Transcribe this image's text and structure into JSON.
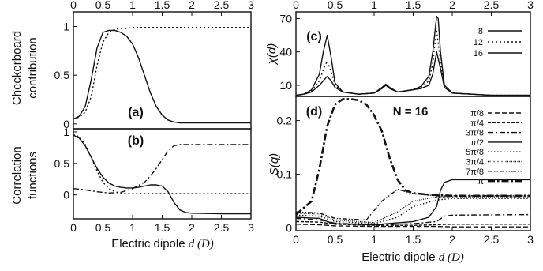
{
  "chart_data": [
    {
      "type": "line",
      "panel": "(a)",
      "ylabel": "Checkerboard contribution",
      "ylabel_lines": [
        "Checkerboard",
        "contribution"
      ],
      "xlim": [
        0,
        3
      ],
      "ylim": [
        -0.05,
        1.15
      ],
      "yticks": [
        "0",
        "0.5",
        "1"
      ],
      "xticks_top": [
        "0",
        "0.5",
        "1",
        "1.5",
        "2",
        "2.5",
        "3"
      ],
      "series": [
        {
          "style": "solid",
          "x": [
            0,
            0.1,
            0.2,
            0.3,
            0.4,
            0.5,
            0.6,
            0.7,
            0.8,
            0.9,
            1.0,
            1.1,
            1.2,
            1.3,
            1.4,
            1.5,
            1.6,
            1.7,
            1.8,
            1.9,
            2.0,
            2.2,
            2.5,
            3.0
          ],
          "y": [
            0.05,
            0.08,
            0.18,
            0.45,
            0.78,
            0.94,
            0.96,
            0.96,
            0.94,
            0.9,
            0.82,
            0.68,
            0.5,
            0.32,
            0.18,
            0.09,
            0.04,
            0.02,
            0.01,
            0.01,
            0.01,
            0.01,
            0.01,
            0.01
          ]
        },
        {
          "style": "dotted",
          "x": [
            0,
            0.1,
            0.2,
            0.3,
            0.4,
            0.5,
            0.6,
            0.7,
            0.8,
            0.9,
            1.0,
            1.2,
            1.5,
            2.0,
            2.5,
            3.0
          ],
          "y": [
            0.05,
            0.07,
            0.12,
            0.28,
            0.6,
            0.84,
            0.94,
            0.97,
            0.98,
            0.98,
            0.99,
            0.99,
            0.99,
            0.99,
            0.99,
            0.99
          ]
        }
      ]
    },
    {
      "type": "line",
      "panel": "(b)",
      "ylabel": "Correlation functions",
      "ylabel_lines": [
        "Correlation",
        "functions"
      ],
      "xlabel_prefix": "Electric dipole ",
      "xlabel_italic": "d (D)",
      "xlim": [
        0,
        3
      ],
      "ylim": [
        -0.38,
        1.05
      ],
      "yticks": [
        "0",
        "0.5",
        "1"
      ],
      "xticks": [
        "0",
        "0.5",
        "1",
        "1.5",
        "2",
        "2.5",
        "3"
      ],
      "series": [
        {
          "style": "solid",
          "x": [
            0,
            0.1,
            0.2,
            0.3,
            0.4,
            0.5,
            0.6,
            0.7,
            0.8,
            0.9,
            1.0,
            1.1,
            1.2,
            1.3,
            1.4,
            1.5,
            1.6,
            1.7,
            1.8,
            1.9,
            2.0,
            2.5,
            3.0
          ],
          "y": [
            0.95,
            0.9,
            0.78,
            0.6,
            0.42,
            0.28,
            0.19,
            0.14,
            0.12,
            0.11,
            0.11,
            0.12,
            0.14,
            0.16,
            0.16,
            0.14,
            0.05,
            -0.12,
            -0.24,
            -0.28,
            -0.29,
            -0.3,
            -0.3
          ]
        },
        {
          "style": "dotted",
          "x": [
            0,
            0.1,
            0.2,
            0.3,
            0.4,
            0.5,
            0.6,
            0.7,
            0.8,
            0.9,
            1.0,
            1.2,
            1.5,
            2.0,
            2.5,
            3.0
          ],
          "y": [
            0.97,
            0.92,
            0.8,
            0.6,
            0.38,
            0.2,
            0.1,
            0.05,
            0.03,
            0.02,
            0.02,
            0.02,
            0.02,
            0.02,
            0.02,
            0.02
          ]
        },
        {
          "style": "dashdot",
          "x": [
            0,
            0.2,
            0.4,
            0.6,
            0.8,
            1.0,
            1.2,
            1.3,
            1.4,
            1.5,
            1.6,
            1.7,
            1.8,
            1.9,
            2.0,
            2.5,
            3.0
          ],
          "y": [
            0.1,
            0.08,
            0.05,
            0.03,
            0.04,
            0.1,
            0.2,
            0.3,
            0.42,
            0.56,
            0.7,
            0.78,
            0.8,
            0.8,
            0.8,
            0.8,
            0.8
          ]
        }
      ]
    },
    {
      "type": "line",
      "panel": "(c)",
      "ylabel": "χ(d)",
      "xlim": [
        0,
        3
      ],
      "ylim": [
        0,
        76
      ],
      "yticks": [
        "10",
        "40",
        "70"
      ],
      "xticks_top": [
        "0",
        "0.5",
        "1",
        "1.5",
        "2",
        "2.5",
        "3"
      ],
      "legend_position": "top-right",
      "series": [
        {
          "name": "8",
          "style": "solid",
          "x": [
            0,
            0.1,
            0.2,
            0.3,
            0.35,
            0.4,
            0.45,
            0.5,
            0.6,
            0.8,
            1.0,
            1.1,
            1.15,
            1.2,
            1.3,
            1.4,
            1.5,
            1.6,
            1.7,
            1.75,
            1.8,
            1.85,
            1.9,
            2.0,
            2.5,
            3.0
          ],
          "y": [
            1,
            2,
            4,
            10,
            14,
            18,
            14,
            8,
            4,
            2,
            3,
            8,
            11,
            8,
            4,
            5,
            6,
            7,
            10,
            20,
            40,
            25,
            8,
            3,
            1,
            1
          ]
        },
        {
          "name": "12",
          "style": "dotted",
          "x": [
            0,
            0.1,
            0.2,
            0.3,
            0.35,
            0.4,
            0.45,
            0.5,
            0.6,
            0.8,
            1.0,
            1.1,
            1.15,
            1.2,
            1.3,
            1.4,
            1.5,
            1.6,
            1.7,
            1.75,
            1.8,
            1.85,
            1.9,
            2.0,
            2.5,
            3.0
          ],
          "y": [
            1,
            2,
            5,
            14,
            24,
            32,
            22,
            10,
            4,
            2,
            3,
            7,
            10,
            7,
            4,
            5,
            6,
            8,
            14,
            30,
            60,
            30,
            9,
            3,
            1,
            1
          ]
        },
        {
          "name": "16",
          "style": "solid",
          "x": [
            0,
            0.1,
            0.2,
            0.3,
            0.35,
            0.4,
            0.45,
            0.5,
            0.6,
            0.8,
            1.0,
            1.1,
            1.15,
            1.2,
            1.3,
            1.4,
            1.5,
            1.6,
            1.7,
            1.75,
            1.8,
            1.82,
            1.85,
            1.9,
            2.0,
            2.5,
            3.0
          ],
          "y": [
            1,
            2,
            6,
            20,
            40,
            55,
            35,
            12,
            4,
            2,
            3,
            7,
            10,
            7,
            4,
            5,
            6,
            9,
            18,
            40,
            72,
            70,
            40,
            10,
            3,
            1,
            1
          ]
        }
      ]
    },
    {
      "type": "line",
      "panel": "(d)",
      "annotation": "N = 16",
      "ylabel": "S(q)",
      "xlabel_prefix": "Electric dipole ",
      "xlabel_italic": "d (D)",
      "xlim": [
        0,
        3
      ],
      "ylim": [
        -0.005,
        0.245
      ],
      "yticks": [
        "0",
        "0.1",
        "0.2"
      ],
      "xticks": [
        "0",
        "0.5",
        "1",
        "1.5",
        "2",
        "2.5",
        "3"
      ],
      "legend_position": "right",
      "series": [
        {
          "name": "π/8",
          "style": "dash",
          "x": [
            0,
            0.3,
            0.5,
            1.0,
            1.5,
            1.8,
            2.0,
            3.0
          ],
          "y": [
            0.007,
            0.006,
            0.004,
            0.003,
            0.003,
            0.003,
            0.002,
            0.002
          ]
        },
        {
          "name": "π/4",
          "style": "dash2",
          "x": [
            0,
            0.3,
            0.5,
            1.0,
            1.5,
            1.8,
            2.0,
            3.0
          ],
          "y": [
            0.012,
            0.011,
            0.007,
            0.005,
            0.005,
            0.006,
            0.007,
            0.007
          ]
        },
        {
          "name": "3π/8",
          "style": "dashdot",
          "x": [
            0,
            0.3,
            0.5,
            1.0,
            1.5,
            1.8,
            1.9,
            2.0,
            3.0
          ],
          "y": [
            0.018,
            0.015,
            0.009,
            0.006,
            0.008,
            0.012,
            0.022,
            0.024,
            0.025
          ]
        },
        {
          "name": "π/2",
          "style": "solid",
          "x": [
            0,
            0.3,
            0.4,
            0.5,
            1.0,
            1.5,
            1.7,
            1.8,
            1.85,
            1.9,
            2.0,
            3.0
          ],
          "y": [
            0.02,
            0.018,
            0.012,
            0.008,
            0.006,
            0.012,
            0.02,
            0.04,
            0.07,
            0.085,
            0.09,
            0.09
          ]
        },
        {
          "name": "5π/8",
          "style": "dot",
          "x": [
            0,
            0.3,
            0.5,
            1.0,
            1.3,
            1.5,
            1.8,
            2.0,
            3.0
          ],
          "y": [
            0.024,
            0.022,
            0.012,
            0.008,
            0.02,
            0.04,
            0.052,
            0.055,
            0.055
          ]
        },
        {
          "name": "3π/4",
          "style": "dot2",
          "x": [
            0,
            0.3,
            0.5,
            1.0,
            1.3,
            1.5,
            1.8,
            2.0,
            3.0
          ],
          "y": [
            0.028,
            0.026,
            0.015,
            0.01,
            0.03,
            0.05,
            0.058,
            0.058,
            0.058
          ]
        },
        {
          "name": "7π/8",
          "style": "dashdotdot",
          "x": [
            0,
            0.3,
            0.5,
            0.9,
            1.1,
            1.3,
            1.5,
            1.8,
            2.0,
            3.0
          ],
          "y": [
            0.03,
            0.028,
            0.018,
            0.015,
            0.05,
            0.072,
            0.064,
            0.06,
            0.06,
            0.06
          ]
        },
        {
          "name": "π",
          "style": "dashdot-thick",
          "x": [
            0,
            0.2,
            0.3,
            0.4,
            0.5,
            0.6,
            0.7,
            0.8,
            0.9,
            1.0,
            1.1,
            1.2,
            1.3,
            1.4,
            1.5,
            1.7,
            2.0,
            3.0
          ],
          "y": [
            0.025,
            0.05,
            0.11,
            0.19,
            0.23,
            0.24,
            0.24,
            0.238,
            0.23,
            0.21,
            0.18,
            0.13,
            0.09,
            0.07,
            0.065,
            0.062,
            0.06,
            0.06
          ]
        }
      ]
    }
  ]
}
